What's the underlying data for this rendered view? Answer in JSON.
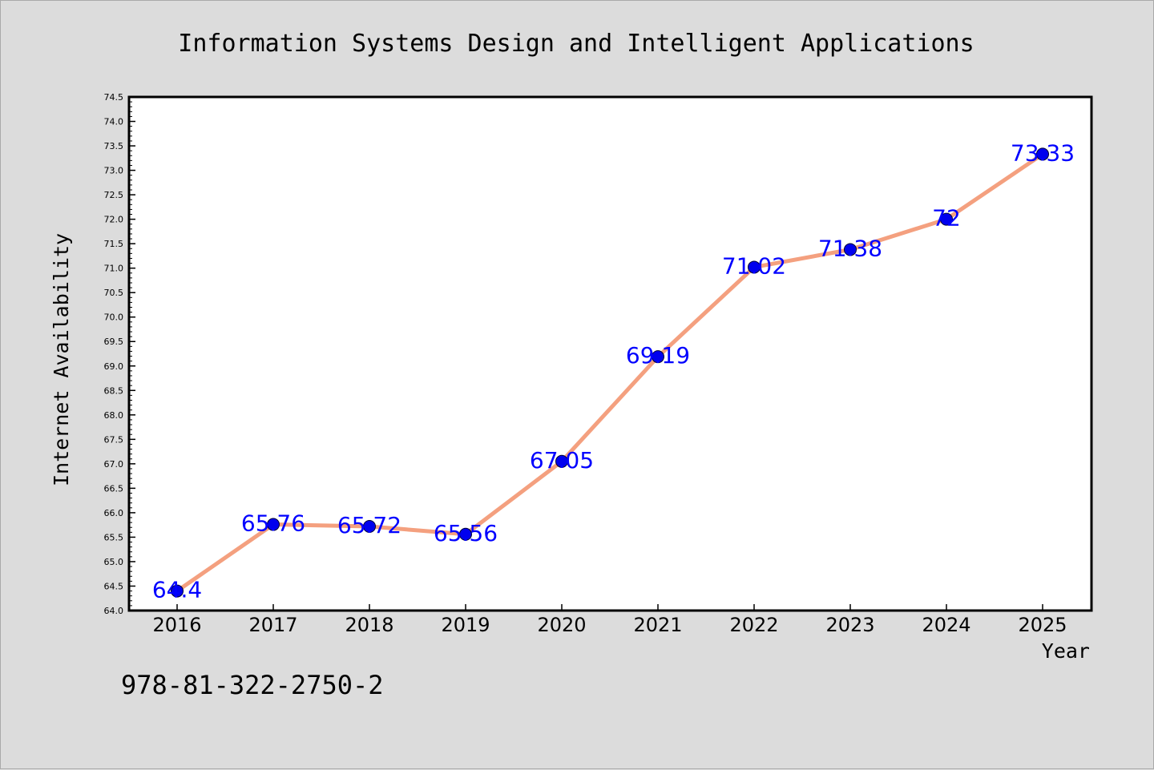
{
  "chart_data": {
    "type": "line",
    "title": "Information Systems Design and Intelligent Applications",
    "xlabel": "Year",
    "ylabel": "Internet Availability",
    "categories": [
      "2016",
      "2017",
      "2018",
      "2019",
      "2020",
      "2021",
      "2022",
      "2023",
      "2024",
      "2025"
    ],
    "values": [
      64.4,
      65.76,
      65.72,
      65.56,
      67.05,
      69.19,
      71.02,
      71.38,
      72,
      73.33
    ],
    "data_labels": [
      "64.4",
      "65.76",
      "65.72",
      "65.56",
      "67.05",
      "69.19",
      "71.02",
      "71.38",
      "72",
      "73.33"
    ],
    "ylim": [
      64.0,
      74.5
    ],
    "ytick_labels": [
      "64.0",
      "64.5",
      "65.0",
      "65.5",
      "66.0",
      "66.5",
      "67.0",
      "67.5",
      "68.0",
      "68.5",
      "69.0",
      "69.5",
      "70.0",
      "70.5",
      "71.0",
      "71.5",
      "72.0",
      "72.5",
      "73.0",
      "73.5",
      "74.0",
      "74.5"
    ],
    "grid": false,
    "legend": "none",
    "line_color": "#f4a07f",
    "marker_color": "#0000ee",
    "label_color": "#0000ff"
  },
  "footer_text": "978-81-322-2750-2",
  "background_color": "#dcdcdc"
}
